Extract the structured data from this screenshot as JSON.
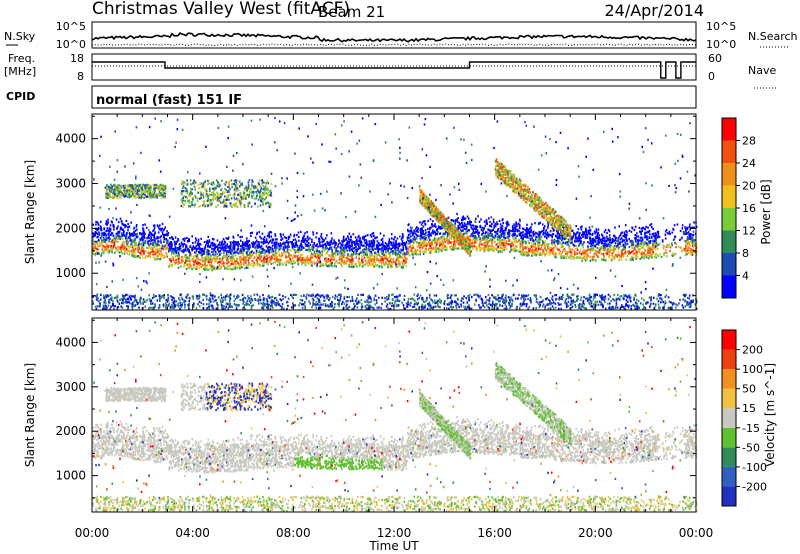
{
  "header": {
    "station": "Christmas Valley West (fitACF)",
    "beam": "Beam 21",
    "date": "24/Apr/2014"
  },
  "panels": {
    "nsky": {
      "label": "N.Sky",
      "ytick_top": "10^5",
      "ytick_bottom": "10^0",
      "right_label": "N.Search",
      "right_tick_top": "10^5",
      "right_tick_bottom": "10^0"
    },
    "freq": {
      "label_line1": "Freq.",
      "label_line2": "[MHz]",
      "ytick_top": "18",
      "ytick_bottom": "8",
      "right_label": "Nave",
      "right_tick_top": "60",
      "right_tick_bottom": "0"
    },
    "cpid": {
      "label": "CPID",
      "text": "normal (fast) 151 IF"
    }
  },
  "chart_data": [
    {
      "type": "heatmap",
      "name": "power",
      "ylabel": "Slant Range [km]",
      "yticks": [
        "1000",
        "2000",
        "3000",
        "4000"
      ],
      "ylim": [
        180,
        4550
      ],
      "colorbar": {
        "label": "Power [dB]",
        "ticks": [
          "4",
          "8",
          "12",
          "16",
          "20",
          "24",
          "28"
        ],
        "colors": [
          "#0000ff",
          "#1e4ab4",
          "#2e8c5a",
          "#7acb3c",
          "#f0c020",
          "#f0901c",
          "#f05010",
          "#ff0000"
        ]
      }
    },
    {
      "type": "heatmap",
      "name": "velocity",
      "ylabel": "Slant Range [km]",
      "yticks": [
        "1000",
        "2000",
        "3000",
        "4000"
      ],
      "ylim": [
        180,
        4550
      ],
      "colorbar": {
        "label": "Velocity [m s^-1]",
        "ticks": [
          "200",
          "100",
          "50",
          "15",
          "-15",
          "-50",
          "-100",
          "-200"
        ],
        "colors": [
          "#2030c0",
          "#3060c0",
          "#2e8c5a",
          "#60c030",
          "#c8c8c0",
          "#f0c040",
          "#f09020",
          "#f04010",
          "#ff0000"
        ]
      }
    }
  ],
  "xaxis": {
    "label": "Time UT",
    "ticks": [
      "00:00",
      "04:00",
      "08:00",
      "12:00",
      "16:00",
      "20:00",
      "00:00"
    ]
  }
}
